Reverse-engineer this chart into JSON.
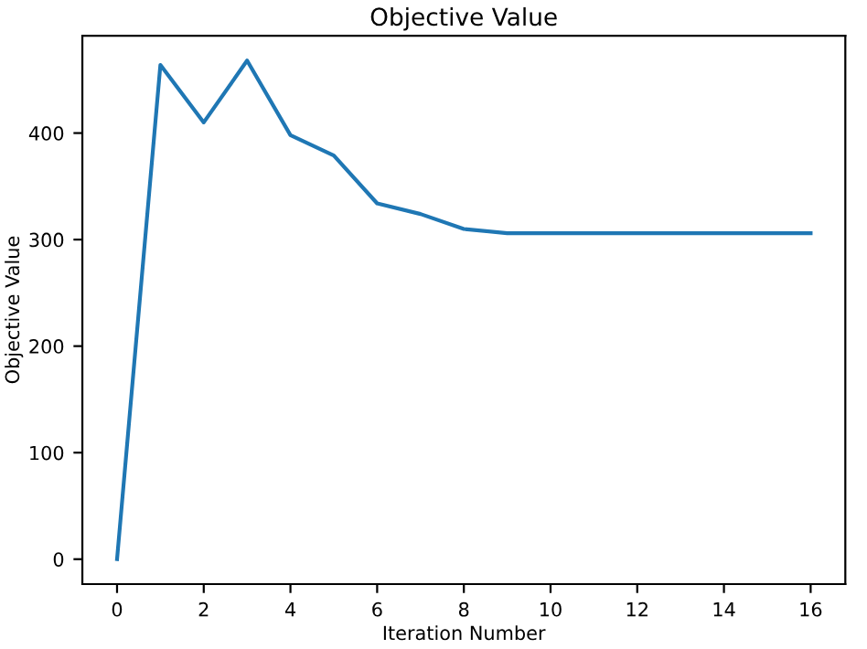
{
  "chart_data": {
    "type": "line",
    "title": "Objective Value",
    "xlabel": "Iteration Number",
    "ylabel": "Objective Value",
    "x": [
      0,
      1,
      2,
      3,
      4,
      5,
      6,
      7,
      8,
      9,
      10,
      11,
      12,
      13,
      14,
      15,
      16
    ],
    "series": [
      {
        "color": "#1f77b4",
        "values": [
          0,
          464,
          410,
          468,
          398,
          379,
          334,
          324,
          310,
          306,
          306,
          306,
          306,
          306,
          306,
          306,
          306
        ]
      }
    ],
    "xlim": [
      -0.8,
      16.8
    ],
    "ylim": [
      -23.4,
      491.4
    ],
    "xticks": [
      0,
      2,
      4,
      6,
      8,
      10,
      12,
      14,
      16
    ],
    "yticks": [
      0,
      100,
      200,
      300,
      400
    ],
    "grid": false,
    "legend": false,
    "marker": "none",
    "line_style": "solid"
  }
}
